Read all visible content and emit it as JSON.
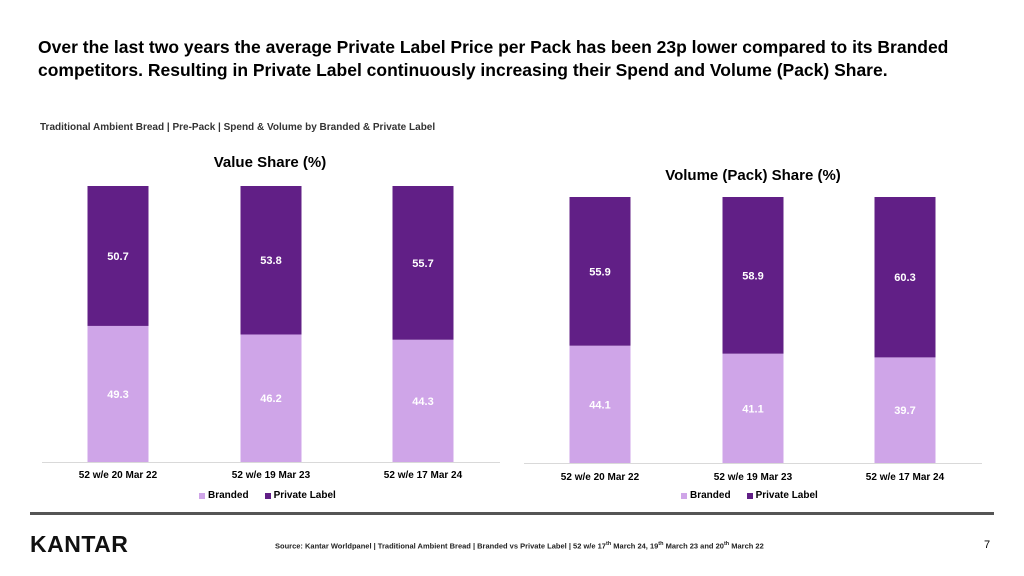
{
  "headline": "Over the last two years the average Private Label Price per Pack has been 23p lower compared to its Branded competitors. Resulting in Private Label continuously increasing their Spend and Volume (Pack) Share.",
  "subtitle": "Traditional Ambient Bread | Pre-Pack | Spend & Volume by Branded & Private Label",
  "colors": {
    "branded": "#cfa5e8",
    "private_label": "#611f86",
    "axis": "#d9d9d9"
  },
  "legend": {
    "branded": "Branded",
    "private_label": "Private Label"
  },
  "chart_data": [
    {
      "type": "bar",
      "stacked": true,
      "title": "Value Share (%)",
      "categories": [
        "52 w/e 20 Mar 22",
        "52 w/e 19 Mar 23",
        "52 w/e 17 Mar 24"
      ],
      "series": [
        {
          "name": "Branded",
          "values": [
            49.3,
            46.2,
            44.3
          ]
        },
        {
          "name": "Private Label",
          "values": [
            50.7,
            53.8,
            55.7
          ]
        }
      ],
      "ylim": [
        0,
        100
      ],
      "legend_position": "bottom"
    },
    {
      "type": "bar",
      "stacked": true,
      "title": "Volume (Pack) Share (%)",
      "categories": [
        "52 w/e 20 Mar 22",
        "52 w/e 19 Mar 23",
        "52 w/e 17 Mar 24"
      ],
      "series": [
        {
          "name": "Branded",
          "values": [
            44.1,
            41.1,
            39.7
          ]
        },
        {
          "name": "Private Label",
          "values": [
            55.9,
            58.9,
            60.3
          ]
        }
      ],
      "ylim": [
        0,
        100
      ],
      "legend_position": "bottom"
    }
  ],
  "footer": {
    "logo": "KANTAR",
    "source": "Source: Kantar Worldpanel | Traditional Ambient Bread | Branded vs Private Label | 52 w/e 17th March 24, 19th March 23 and 20th March 22",
    "page_number": "7"
  }
}
